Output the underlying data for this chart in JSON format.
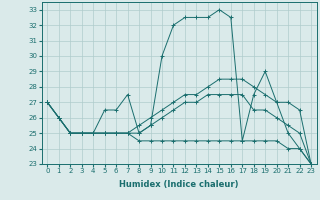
{
  "xlabel": "Humidex (Indice chaleur)",
  "bg_color": "#daeaea",
  "grid_color": "#b0cccc",
  "line_color": "#1a6e6e",
  "xlim": [
    -0.5,
    23.5
  ],
  "ylim": [
    23,
    33.5
  ],
  "yticks": [
    23,
    24,
    25,
    26,
    27,
    28,
    29,
    30,
    31,
    32,
    33
  ],
  "xticks": [
    0,
    1,
    2,
    3,
    4,
    5,
    6,
    7,
    8,
    9,
    10,
    11,
    12,
    13,
    14,
    15,
    16,
    17,
    18,
    19,
    20,
    21,
    22,
    23
  ],
  "series": [
    {
      "x": [
        0,
        1,
        2,
        3,
        4,
        5,
        6,
        7,
        8,
        9,
        10,
        11,
        12,
        13,
        14,
        15,
        16,
        17,
        18,
        19,
        20,
        21,
        22,
        23
      ],
      "y": [
        27.0,
        26.0,
        25.0,
        25.0,
        25.0,
        26.5,
        26.5,
        27.5,
        25.0,
        25.5,
        30.0,
        32.0,
        32.5,
        32.5,
        32.5,
        33.0,
        32.5,
        24.5,
        27.5,
        29.0,
        27.0,
        25.0,
        24.0,
        23.0
      ]
    },
    {
      "x": [
        0,
        1,
        2,
        3,
        4,
        5,
        6,
        7,
        8,
        9,
        10,
        11,
        12,
        13,
        14,
        15,
        16,
        17,
        18,
        19,
        20,
        21,
        22,
        23
      ],
      "y": [
        27.0,
        26.0,
        25.0,
        25.0,
        25.0,
        25.0,
        25.0,
        25.0,
        25.5,
        26.0,
        26.5,
        27.0,
        27.5,
        27.5,
        28.0,
        28.5,
        28.5,
        28.5,
        28.0,
        27.5,
        27.0,
        27.0,
        26.5,
        23.0
      ]
    },
    {
      "x": [
        0,
        1,
        2,
        3,
        4,
        5,
        6,
        7,
        8,
        9,
        10,
        11,
        12,
        13,
        14,
        15,
        16,
        17,
        18,
        19,
        20,
        21,
        22,
        23
      ],
      "y": [
        27.0,
        26.0,
        25.0,
        25.0,
        25.0,
        25.0,
        25.0,
        25.0,
        25.0,
        25.5,
        26.0,
        26.5,
        27.0,
        27.0,
        27.5,
        27.5,
        27.5,
        27.5,
        26.5,
        26.5,
        26.0,
        25.5,
        25.0,
        23.0
      ]
    },
    {
      "x": [
        0,
        1,
        2,
        3,
        4,
        5,
        6,
        7,
        8,
        9,
        10,
        11,
        12,
        13,
        14,
        15,
        16,
        17,
        18,
        19,
        20,
        21,
        22,
        23
      ],
      "y": [
        27.0,
        26.0,
        25.0,
        25.0,
        25.0,
        25.0,
        25.0,
        25.0,
        24.5,
        24.5,
        24.5,
        24.5,
        24.5,
        24.5,
        24.5,
        24.5,
        24.5,
        24.5,
        24.5,
        24.5,
        24.5,
        24.0,
        24.0,
        23.0
      ]
    }
  ]
}
